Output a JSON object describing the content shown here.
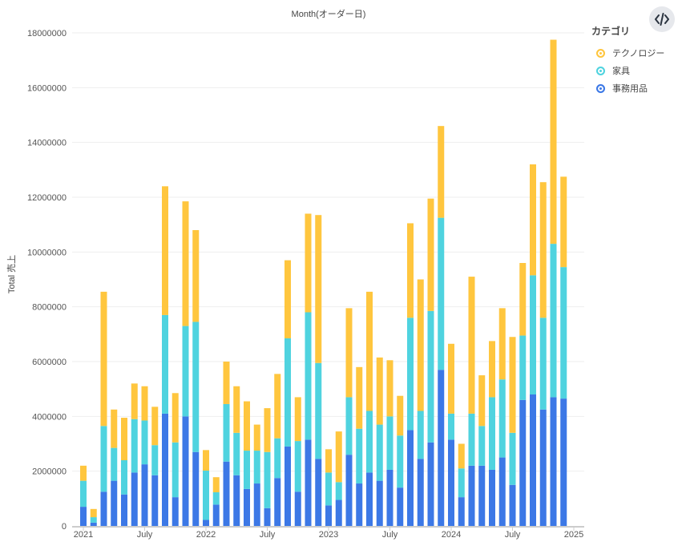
{
  "chart_data": {
    "type": "bar",
    "stacked": true,
    "title": "Month(オーダー日)",
    "ylabel": "Total 売上",
    "xlabel": "",
    "ylim": [
      0,
      18000000
    ],
    "yticks": [
      "0",
      "2000000",
      "4000000",
      "6000000",
      "8000000",
      "10000000",
      "12000000",
      "14000000",
      "16000000",
      "18000000"
    ],
    "xticks": [
      {
        "label": "2021",
        "month": "2021-01"
      },
      {
        "label": "July",
        "month": "2021-07"
      },
      {
        "label": "2022",
        "month": "2022-01"
      },
      {
        "label": "July",
        "month": "2022-07"
      },
      {
        "label": "2023",
        "month": "2023-01"
      },
      {
        "label": "July",
        "month": "2023-07"
      },
      {
        "label": "2024",
        "month": "2024-01"
      },
      {
        "label": "July",
        "month": "2024-07"
      },
      {
        "label": "2025",
        "month": "2025-01"
      }
    ],
    "legend_title": "カテゴリ",
    "legend_position": "top-right",
    "grid": true,
    "categories": [
      "2021-01",
      "2021-02",
      "2021-03",
      "2021-04",
      "2021-05",
      "2021-06",
      "2021-07",
      "2021-08",
      "2021-09",
      "2021-10",
      "2021-11",
      "2021-12",
      "2022-01",
      "2022-02",
      "2022-03",
      "2022-04",
      "2022-05",
      "2022-06",
      "2022-07",
      "2022-08",
      "2022-09",
      "2022-10",
      "2022-11",
      "2022-12",
      "2023-01",
      "2023-02",
      "2023-03",
      "2023-04",
      "2023-05",
      "2023-06",
      "2023-07",
      "2023-08",
      "2023-09",
      "2023-10",
      "2023-11",
      "2023-12",
      "2024-01",
      "2024-02",
      "2024-03",
      "2024-04",
      "2024-05",
      "2024-06",
      "2024-07",
      "2024-08",
      "2024-09",
      "2024-10",
      "2024-11",
      "2024-12"
    ],
    "series": [
      {
        "name": "事務用品",
        "color": "#3c78e6",
        "values": [
          700000,
          120000,
          1250000,
          1650000,
          1150000,
          1950000,
          2250000,
          1850000,
          4100000,
          1050000,
          4000000,
          2700000,
          220000,
          780000,
          2350000,
          1850000,
          1350000,
          1550000,
          650000,
          1750000,
          2900000,
          1250000,
          3150000,
          2450000,
          750000,
          950000,
          2600000,
          1550000,
          1950000,
          1650000,
          2050000,
          1400000,
          3500000,
          2450000,
          3050000,
          5700000,
          3150000,
          1050000,
          2200000,
          2200000,
          2050000,
          2500000,
          1500000,
          4600000,
          4800000,
          4250000,
          4700000,
          4650000
        ]
      },
      {
        "name": "家具",
        "color": "#4fd3df",
        "values": [
          950000,
          200000,
          2400000,
          1200000,
          1250000,
          1950000,
          1600000,
          1100000,
          3600000,
          2000000,
          3300000,
          4750000,
          1800000,
          450000,
          2100000,
          1550000,
          1400000,
          1200000,
          2050000,
          1450000,
          3950000,
          1850000,
          4650000,
          3500000,
          1200000,
          650000,
          2100000,
          2000000,
          2250000,
          2050000,
          1950000,
          1900000,
          4100000,
          1750000,
          4800000,
          5550000,
          950000,
          1050000,
          1900000,
          1450000,
          2650000,
          2850000,
          1900000,
          2350000,
          4350000,
          3350000,
          5600000,
          4800000
        ]
      },
      {
        "name": "テクノロジー",
        "color": "#ffc63e",
        "values": [
          550000,
          300000,
          4900000,
          1400000,
          1550000,
          1300000,
          1250000,
          1400000,
          4700000,
          1800000,
          4550000,
          3350000,
          750000,
          550000,
          1550000,
          1700000,
          1800000,
          950000,
          1600000,
          2350000,
          2850000,
          1600000,
          3600000,
          5400000,
          850000,
          1850000,
          3250000,
          2250000,
          4350000,
          2450000,
          2050000,
          1450000,
          3450000,
          4800000,
          4100000,
          3350000,
          2550000,
          900000,
          5000000,
          1850000,
          2050000,
          2600000,
          3500000,
          2650000,
          4050000,
          4950000,
          7450000,
          3300000
        ]
      }
    ]
  },
  "ui": {
    "code_button_label": "</>"
  }
}
